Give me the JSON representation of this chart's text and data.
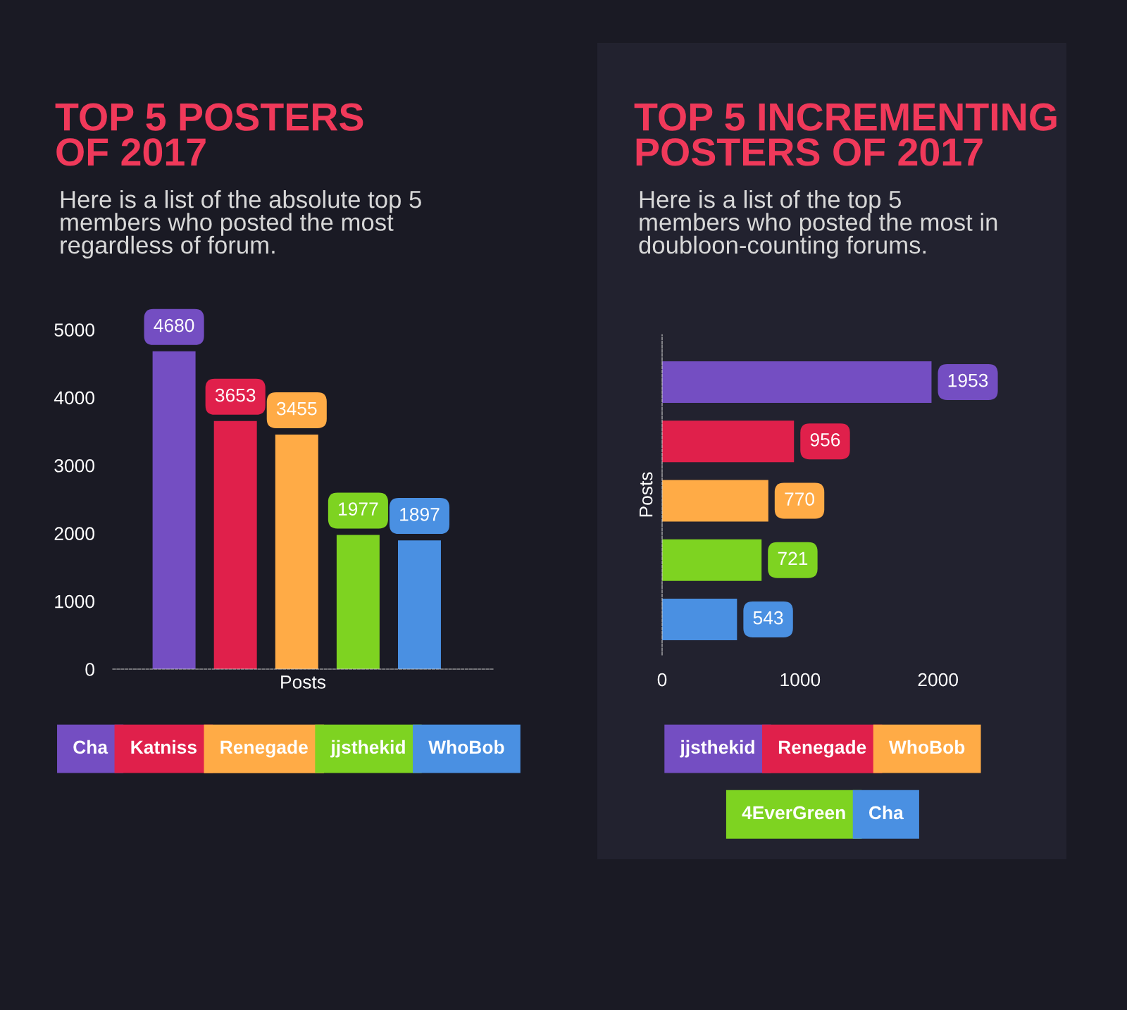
{
  "chart_data": [
    {
      "type": "bar",
      "title": "TOP 5 POSTERS OF 2017",
      "subtitle": "Here is a list of the absolute top 5 members who posted the most regardless of forum.",
      "xlabel": "Posts",
      "categories": [
        null,
        null,
        null,
        null,
        null
      ],
      "series": [
        {
          "name": "Cha",
          "color": "#744ec2",
          "values": [
            4680,
            null,
            null,
            null,
            null
          ]
        },
        {
          "name": "Katniss",
          "color": "#e0204b",
          "values": [
            null,
            3653,
            null,
            null,
            null
          ]
        },
        {
          "name": "Renegade",
          "color": "#ffab46",
          "values": [
            null,
            null,
            3455,
            null,
            null
          ]
        },
        {
          "name": "jjsthekid",
          "color": "#7ed321",
          "values": [
            null,
            null,
            null,
            1977,
            null
          ]
        },
        {
          "name": "WhoBob",
          "color": "#4a90e2",
          "values": [
            null,
            null,
            null,
            null,
            1897
          ]
        }
      ],
      "ylim": [
        0,
        5000
      ],
      "yticks": [
        0,
        1000,
        2000,
        3000,
        4000,
        5000
      ],
      "stacked": true,
      "data_labels": true,
      "legend": "bottom",
      "grid": false
    },
    {
      "type": "bar",
      "orientation": "horizontal",
      "title": "TOP 5 INCREMENTING POSTERS OF 2017",
      "subtitle": "Here is a list of the top 5 members who posted the most in doubloon-counting forums.",
      "ylabel": "Posts",
      "categories": [
        null,
        null,
        null,
        null,
        null
      ],
      "series": [
        {
          "name": "jjsthekid",
          "color": "#744ec2",
          "values": [
            1953,
            null,
            null,
            null,
            null
          ]
        },
        {
          "name": "Renegade",
          "color": "#e0204b",
          "values": [
            null,
            956,
            null,
            null,
            null
          ]
        },
        {
          "name": "WhoBob",
          "color": "#ffab46",
          "values": [
            null,
            null,
            770,
            null,
            null
          ]
        },
        {
          "name": "4EverGreen",
          "color": "#7ed321",
          "values": [
            null,
            null,
            null,
            721,
            null
          ]
        },
        {
          "name": "Cha",
          "color": "#4a90e2",
          "values": [
            null,
            null,
            null,
            null,
            543
          ]
        }
      ],
      "xlim": [
        0,
        2400
      ],
      "xticks": [
        0,
        1000,
        2000
      ],
      "stacked": true,
      "data_labels": true,
      "legend": "bottom",
      "grid": false
    }
  ]
}
